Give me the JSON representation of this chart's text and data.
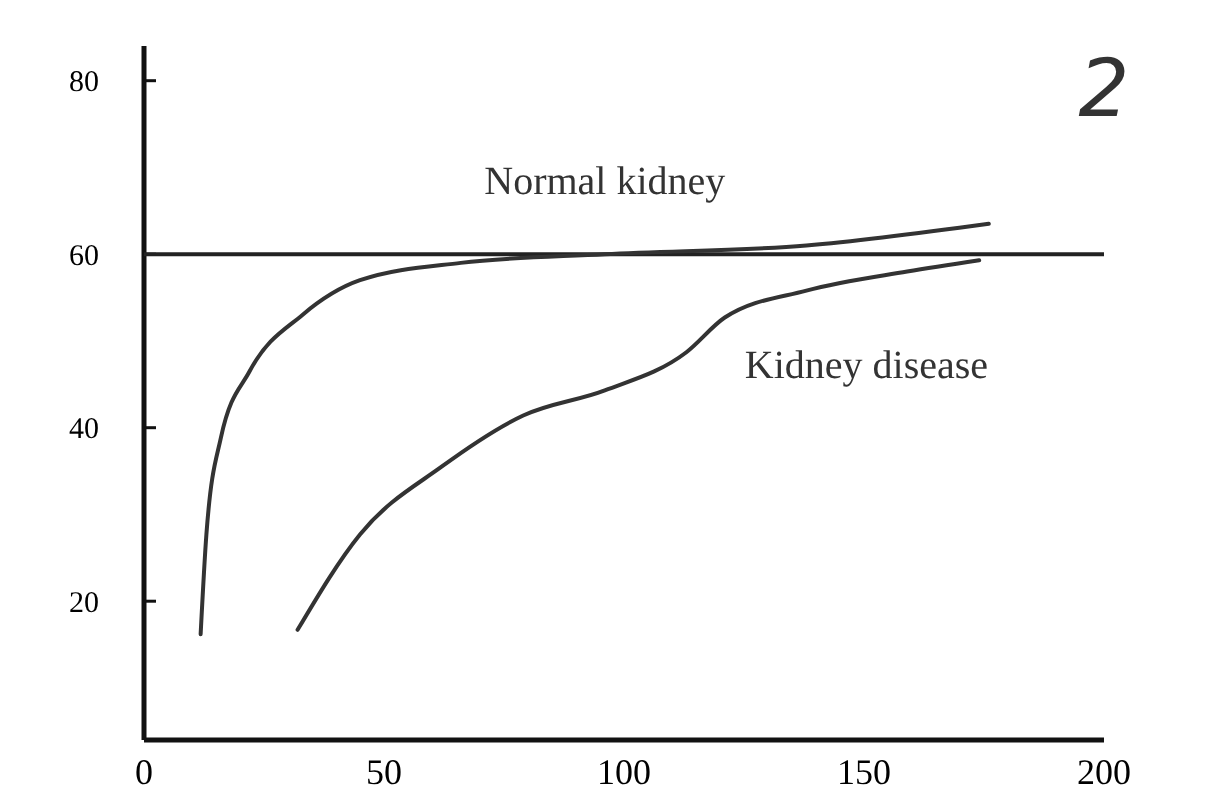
{
  "chart_data": {
    "type": "line",
    "xlim": [
      0,
      200
    ],
    "ylim": [
      4,
      84
    ],
    "xticks": [
      0,
      50,
      100,
      150,
      200
    ],
    "yticks": [
      20,
      40,
      60,
      80
    ],
    "grid": false,
    "marker": "none",
    "line_style": "solid",
    "series": [
      {
        "name": "Normal kidney",
        "color": "#333333",
        "x": [
          11.8,
          13,
          16,
          22,
          33,
          45,
          66,
          96,
          138,
          176
        ],
        "values": [
          16.2,
          27.7,
          38.8,
          46.5,
          53,
          57,
          59,
          60,
          61,
          63.5
        ]
      },
      {
        "name": "Kidney disease",
        "color": "#333333",
        "x": [
          32,
          45,
          62,
          79,
          96,
          113,
          121,
          138,
          159,
          174
        ],
        "values": [
          16.7,
          27.7,
          35.5,
          41.4,
          44.3,
          48.7,
          52.7,
          55.8,
          58,
          59.3
        ]
      }
    ],
    "ref_lines": [
      {
        "axis": "y",
        "value": 60,
        "color": "#222222",
        "line_style": "solid"
      }
    ],
    "annotations": [
      "2"
    ]
  }
}
